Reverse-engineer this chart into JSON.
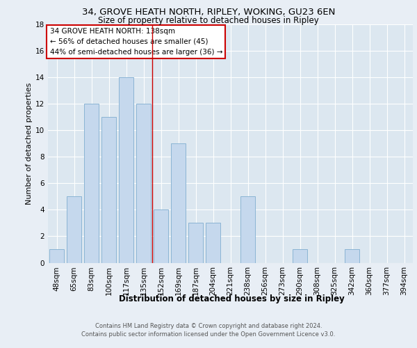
{
  "title1": "34, GROVE HEATH NORTH, RIPLEY, WOKING, GU23 6EN",
  "title2": "Size of property relative to detached houses in Ripley",
  "xlabel": "Distribution of detached houses by size in Ripley",
  "ylabel": "Number of detached properties",
  "categories": [
    "48sqm",
    "65sqm",
    "83sqm",
    "100sqm",
    "117sqm",
    "135sqm",
    "152sqm",
    "169sqm",
    "187sqm",
    "204sqm",
    "221sqm",
    "238sqm",
    "256sqm",
    "273sqm",
    "290sqm",
    "308sqm",
    "325sqm",
    "342sqm",
    "360sqm",
    "377sqm",
    "394sqm"
  ],
  "values": [
    1,
    5,
    12,
    11,
    14,
    12,
    4,
    9,
    3,
    3,
    0,
    5,
    0,
    0,
    1,
    0,
    0,
    1,
    0,
    0,
    0
  ],
  "bar_color": "#c5d8ed",
  "bar_edge_color": "#8ab4d4",
  "vline_color": "#cc0000",
  "vline_x": 5.5,
  "ylim": [
    0,
    18
  ],
  "yticks": [
    0,
    2,
    4,
    6,
    8,
    10,
    12,
    14,
    16,
    18
  ],
  "annotation_title": "34 GROVE HEATH NORTH: 138sqm",
  "annotation_line1": "← 56% of detached houses are smaller (45)",
  "annotation_line2": "44% of semi-detached houses are larger (36) →",
  "annotation_box_color": "#ffffff",
  "annotation_box_edge": "#cc0000",
  "footer1": "Contains HM Land Registry data © Crown copyright and database right 2024.",
  "footer2": "Contains public sector information licensed under the Open Government Licence v3.0.",
  "bg_color": "#e8eef5",
  "plot_bg_color": "#dce7f0",
  "title1_fontsize": 9.5,
  "title2_fontsize": 8.5,
  "ylabel_fontsize": 8,
  "xlabel_fontsize": 8.5,
  "tick_fontsize": 7.5,
  "annot_fontsize": 7.5,
  "footer_fontsize": 6.0
}
